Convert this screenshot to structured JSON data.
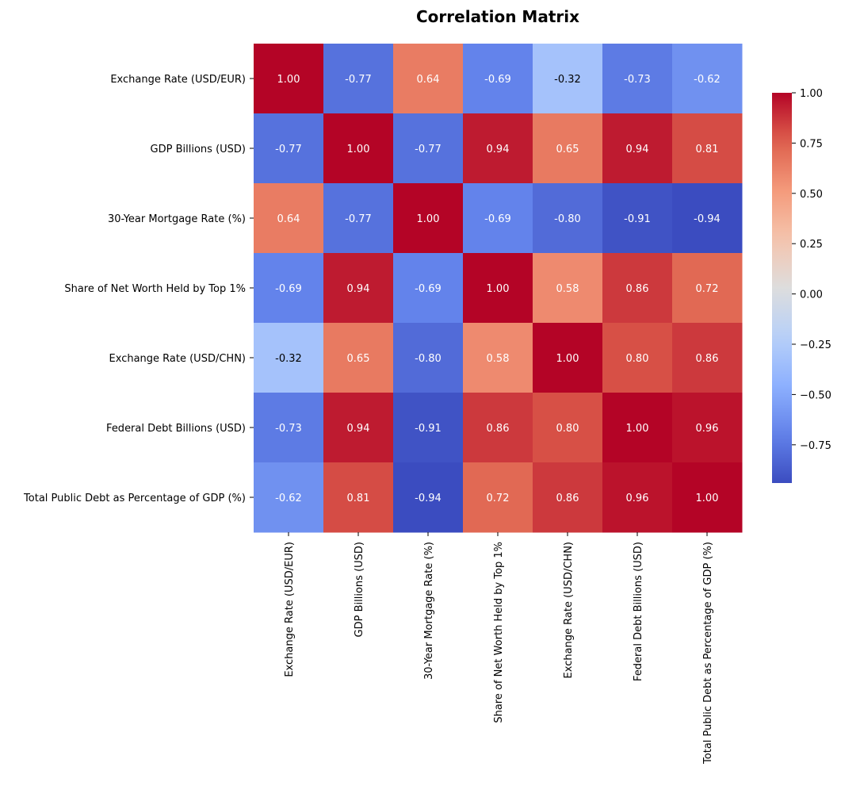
{
  "chart_data": {
    "type": "heatmap",
    "title": "Correlation Matrix",
    "xlabel": "",
    "ylabel": "",
    "categories": [
      "Exchange Rate (USD/EUR)",
      "GDP Billions (USD)",
      "30-Year Mortgage Rate (%)",
      "Share of Net Worth Held by Top 1%",
      "Exchange Rate (USD/CHN)",
      "Federal Debt Billions (USD)",
      "Total Public Debt as Percentage of GDP (%)"
    ],
    "values": [
      [
        1.0,
        -0.77,
        0.64,
        -0.69,
        -0.32,
        -0.73,
        -0.62
      ],
      [
        -0.77,
        1.0,
        -0.77,
        0.94,
        0.65,
        0.94,
        0.81
      ],
      [
        0.64,
        -0.77,
        1.0,
        -0.69,
        -0.8,
        -0.91,
        -0.94
      ],
      [
        -0.69,
        0.94,
        -0.69,
        1.0,
        0.58,
        0.86,
        0.72
      ],
      [
        -0.32,
        0.65,
        -0.8,
        0.58,
        1.0,
        0.8,
        0.86
      ],
      [
        -0.73,
        0.94,
        -0.91,
        0.86,
        0.8,
        1.0,
        0.96
      ],
      [
        -0.62,
        0.81,
        -0.94,
        0.72,
        0.86,
        0.96,
        1.0
      ]
    ],
    "value_format": "2 decimals",
    "colormap": "coolwarm",
    "colorbar": {
      "vmin": -0.94,
      "vmax": 1.0,
      "ticks": [
        "1.00",
        "0.75",
        "0.50",
        "0.25",
        "0.00",
        "−0.25",
        "−0.50",
        "−0.75"
      ],
      "tick_values": [
        1.0,
        0.75,
        0.5,
        0.25,
        0.0,
        -0.25,
        -0.5,
        -0.75
      ],
      "placement": "right"
    },
    "grid": false
  }
}
